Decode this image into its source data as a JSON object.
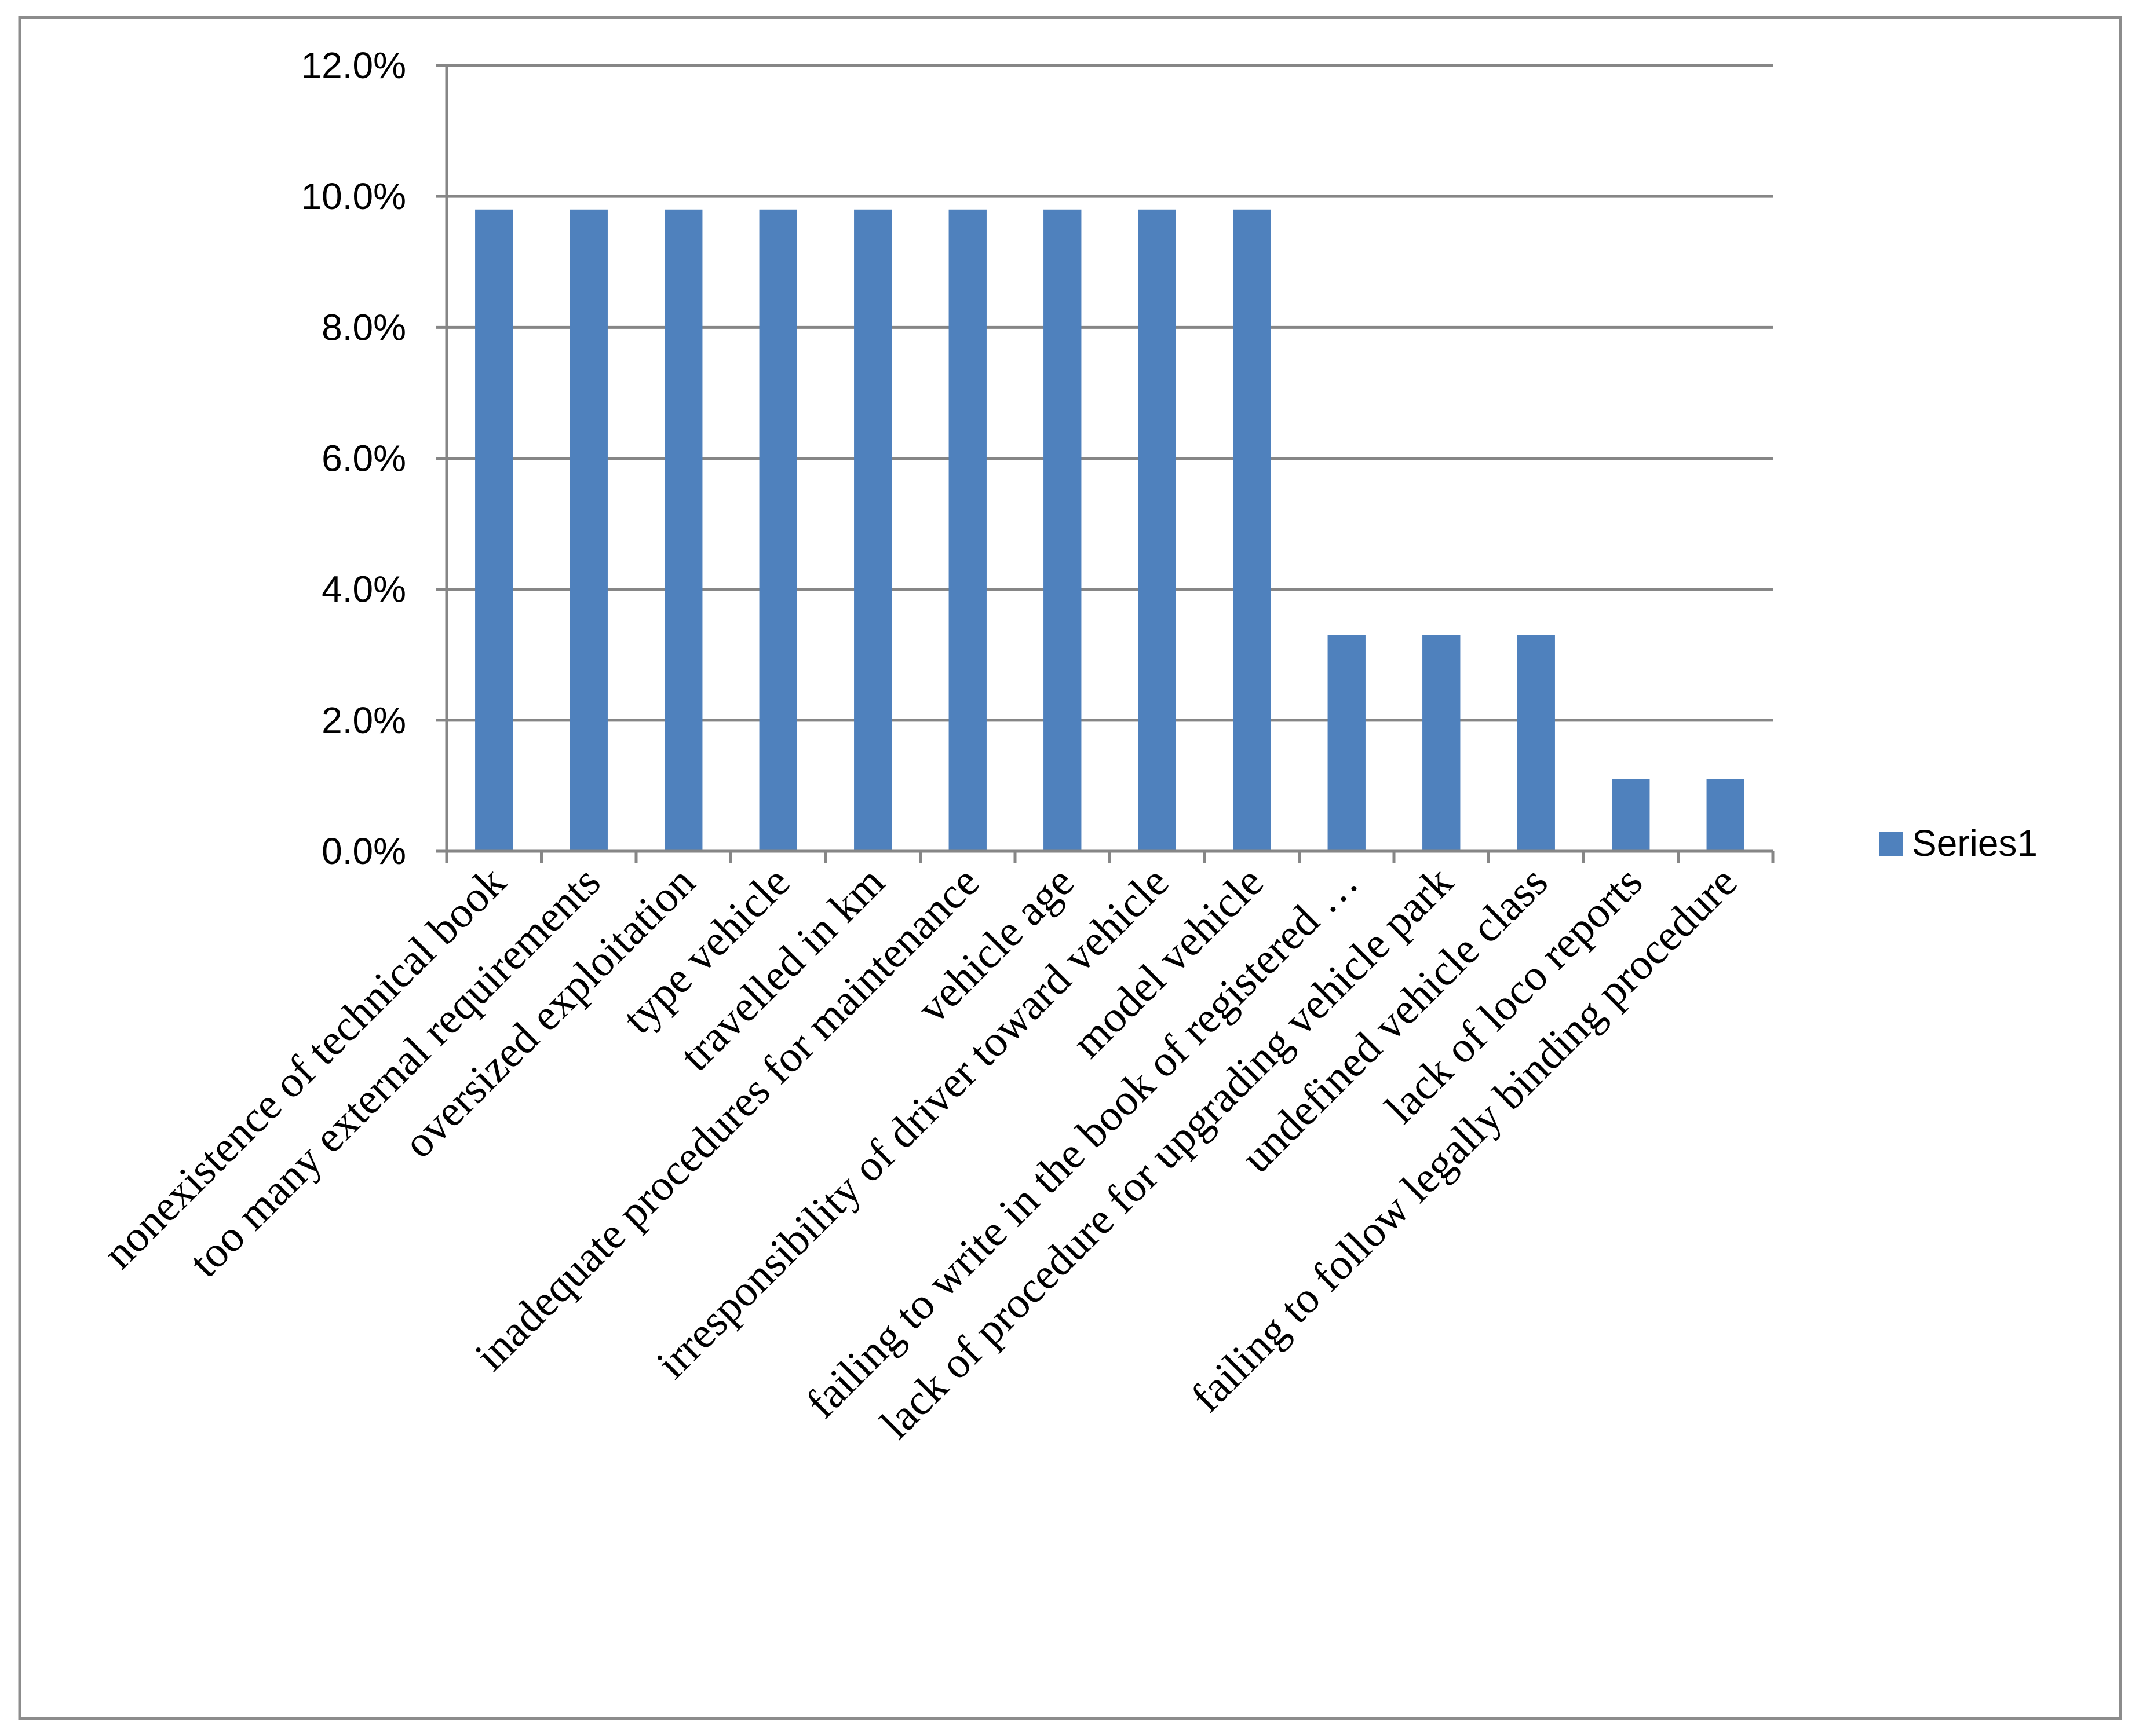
{
  "chart_data": {
    "type": "bar",
    "title": "",
    "xlabel": "",
    "ylabel": "",
    "ylim": [
      0,
      12
    ],
    "y_tick_labels": [
      "0.0%",
      "2.0%",
      "4.0%",
      "6.0%",
      "8.0%",
      "10.0%",
      "12.0%"
    ],
    "grid": "horizontal",
    "legend_position": "right",
    "categories": [
      "nonexistence of technical book",
      "too many external requirements",
      "oversized exploitation",
      "type vehicle",
      "travelled in km",
      "inadequate procedures for maintenance",
      "vehicle age",
      "irresponsibility of driver toward vehicle",
      "model  vehicle",
      "failing to write in the book of registered …",
      "lack of procedure for upgrading vehicle park",
      "undefined vehicle class",
      "lack of loco reports",
      "failing to follow legally binding procedure"
    ],
    "series": [
      {
        "name": "Series1",
        "color": "#4f81bd",
        "values": [
          9.8,
          9.8,
          9.8,
          9.8,
          9.8,
          9.8,
          9.8,
          9.8,
          9.8,
          3.3,
          3.3,
          3.3,
          1.1,
          1.1
        ]
      }
    ]
  }
}
